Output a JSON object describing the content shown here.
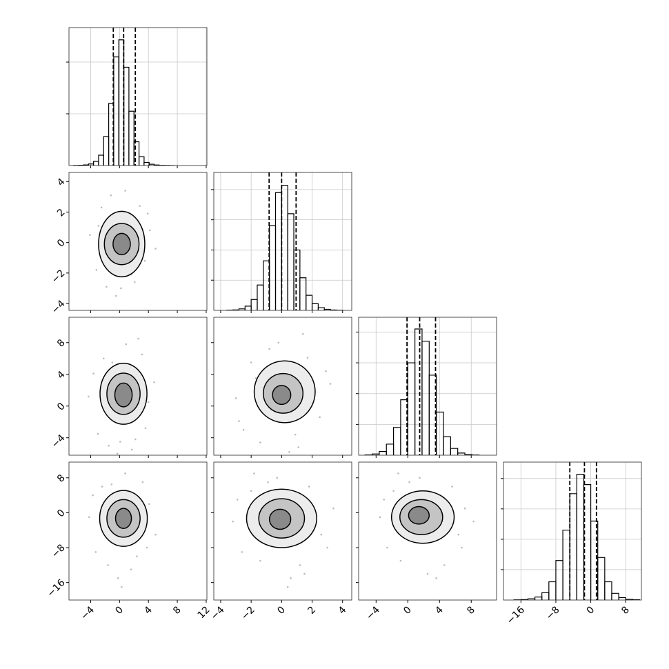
{
  "chart_data": [
    {
      "type": "histogram",
      "color": "#000000",
      "grid": true,
      "bins": [
        -6.4,
        -5.7,
        -5.0,
        -4.3,
        -3.6,
        -2.9,
        -2.2,
        -1.5,
        -0.8,
        -0.1,
        0.6,
        1.3,
        2.0,
        2.7,
        3.4,
        4.1,
        4.8,
        5.5,
        6.2,
        6.9,
        7.6
      ],
      "counts": [
        2,
        5,
        12,
        30,
        80,
        200,
        560,
        1200,
        2100,
        2430,
        1900,
        1050,
        460,
        170,
        60,
        25,
        10,
        4,
        2,
        1
      ],
      "quantiles": [
        -0.86,
        0.57,
        2.19
      ],
      "xlim": [
        -7,
        12.1
      ],
      "xticks": [
        {
          "value": -4,
          "label": "−4"
        },
        0,
        4,
        8,
        12
      ],
      "ylim": [
        0,
        2667
      ],
      "yticks": [
        1000,
        2000
      ]
    },
    {
      "type": "histogram",
      "color": "#000000",
      "grid": true,
      "bins": [
        -3.6,
        -3.2,
        -2.8,
        -2.4,
        -2.0,
        -1.6,
        -1.2,
        -0.8,
        -0.4,
        0.0,
        0.4,
        0.8,
        1.2,
        1.6,
        2.0,
        2.4,
        2.8,
        3.2,
        3.6,
        4.0
      ],
      "counts": [
        3,
        8,
        25,
        70,
        180,
        420,
        820,
        1400,
        1950,
        2070,
        1600,
        1000,
        540,
        250,
        110,
        45,
        18,
        6,
        2
      ],
      "quantiles": [
        -0.82,
        0,
        0.95
      ],
      "xlim": [
        -4.45,
        4.6
      ],
      "xticks": [
        {
          "value": -4,
          "label": "−4"
        },
        {
          "value": -2,
          "label": "−2"
        },
        0,
        2,
        4
      ],
      "ylim": [
        0,
        2284
      ],
      "yticks": [
        500,
        1000,
        1500,
        2000
      ]
    },
    {
      "type": "histogram",
      "color": "#000000",
      "grid": true,
      "bins": [
        -5.4,
        -4.5,
        -3.6,
        -2.7,
        -1.8,
        -0.9,
        0.0,
        0.9,
        1.8,
        2.7,
        3.6,
        4.5,
        5.4,
        6.3,
        7.2,
        8.1,
        9.0
      ],
      "counts": [
        5,
        20,
        60,
        180,
        450,
        900,
        1500,
        2050,
        1850,
        1300,
        700,
        300,
        110,
        35,
        10,
        3
      ],
      "quantiles": [
        -0.1,
        1.5,
        3.5
      ],
      "xlim": [
        -6.2,
        11.2
      ],
      "xticks": [
        {
          "value": -4,
          "label": "−4"
        },
        0,
        4,
        8
      ],
      "ylim": [
        0,
        2240
      ],
      "yticks": [
        500,
        1000,
        1500,
        2000
      ]
    },
    {
      "type": "histogram",
      "color": "#000000",
      "grid": true,
      "bins": [
        -17.6,
        -16.0,
        -14.4,
        -12.8,
        -11.2,
        -9.6,
        -8.0,
        -6.4,
        -4.8,
        -3.2,
        -1.6,
        0.0,
        1.6,
        3.2,
        4.8,
        6.4,
        8.0,
        9.6,
        11.2
      ],
      "counts": [
        3,
        8,
        20,
        50,
        120,
        300,
        650,
        1150,
        1750,
        2070,
        1900,
        1300,
        700,
        300,
        110,
        40,
        12,
        5
      ],
      "quantiles": [
        -4.8,
        -1.45,
        1.3
      ],
      "xlim": [
        -20,
        11.6
      ],
      "xticks": [
        {
          "value": -16,
          "label": "−16"
        },
        {
          "value": -8,
          "label": "−8"
        },
        0,
        8
      ],
      "ylim": [
        0,
        2270
      ],
      "yticks": [
        500,
        1000,
        1500,
        2000
      ]
    },
    {
      "type": "scatter",
      "color": "#bbbbbb",
      "x": [
        -4.1,
        -3.2,
        -2.5,
        -1.8,
        -1.2,
        2.1,
        2.8,
        3.5,
        4.2,
        5.0,
        -0.5,
        0.8,
        1.6,
        -2.9,
        3.9,
        0.2
      ],
      "y": [
        0.5,
        -1.8,
        2.3,
        -2.9,
        3.1,
        -2.6,
        2.4,
        -1.2,
        0.8,
        -0.4,
        -3.5,
        3.4,
        -2.1,
        1.1,
        1.9,
        -3.0
      ],
      "contours": [
        {
          "cx": 0.3,
          "cy": -0.1,
          "rx": 3.2,
          "ry": 2.15
        },
        {
          "cx": 0.3,
          "cy": -0.1,
          "rx": 2.4,
          "ry": 1.35
        },
        {
          "cx": 0.3,
          "cy": -0.1,
          "rx": 1.2,
          "ry": 0.7
        }
      ],
      "xlim": [
        -7,
        12.1
      ],
      "xticks": [
        {
          "value": -4,
          "label": "−4"
        },
        0,
        4,
        8,
        12
      ],
      "ylim": [
        -4.45,
        4.6
      ],
      "yticks": [
        {
          "value": -4,
          "label": "−4"
        },
        {
          "value": -2,
          "label": "−2"
        },
        0,
        2,
        4
      ]
    },
    {
      "type": "scatter",
      "color": "#bbbbbb",
      "x": [
        -4.3,
        -3.0,
        -2.2,
        -1.5,
        2.2,
        3.1,
        4.0,
        4.8,
        -0.3,
        0.9,
        1.7,
        -3.6,
        3.6,
        0.1,
        -1.0,
        2.6
      ],
      "y": [
        1.2,
        -3.5,
        6.0,
        -5.0,
        -4.2,
        6.5,
        0.5,
        3.0,
        -6.0,
        7.8,
        -5.5,
        4.1,
        -2.8,
        -4.5,
        5.5,
        8.5
      ],
      "contours": [
        {
          "cx": 0.55,
          "cy": 1.55,
          "rx": 3.25,
          "ry": 3.85
        },
        {
          "cx": 0.55,
          "cy": 1.55,
          "rx": 2.3,
          "ry": 2.6
        },
        {
          "cx": 0.55,
          "cy": 1.4,
          "rx": 1.2,
          "ry": 1.5
        }
      ],
      "xlim": [
        -7,
        12.1
      ],
      "xticks": [
        {
          "value": -4,
          "label": "−4"
        },
        0,
        4,
        8,
        12
      ],
      "ylim": [
        -6.2,
        11.2
      ],
      "yticks": [
        {
          "value": -4,
          "label": "−4"
        },
        0,
        4,
        8
      ]
    },
    {
      "type": "scatter",
      "color": "#bbbbbb",
      "x": [
        -3.0,
        -2.5,
        -2.0,
        -1.4,
        -0.8,
        1.1,
        1.7,
        2.5,
        3.2,
        -0.2,
        0.5,
        2.9,
        -2.8,
        1.4,
        -1.7,
        0.9
      ],
      "y": [
        1.0,
        -3.0,
        5.5,
        -4.6,
        7.2,
        -5.2,
        6.1,
        -1.4,
        2.8,
        8.0,
        -5.8,
        4.4,
        -1.9,
        9.1,
        3.5,
        -3.6
      ],
      "contours": [
        {
          "cx": 0.2,
          "cy": 1.8,
          "rx": 2.0,
          "ry": 3.9
        },
        {
          "cx": 0.1,
          "cy": 1.6,
          "rx": 1.3,
          "ry": 2.5
        },
        {
          "cx": 0.0,
          "cy": 1.4,
          "rx": 0.6,
          "ry": 1.2
        }
      ],
      "xlim": [
        -4.45,
        4.6
      ],
      "xticks": [
        {
          "value": -4,
          "label": "−4"
        },
        {
          "value": -2,
          "label": "−2"
        },
        0,
        2,
        4
      ],
      "ylim": [
        -6.2,
        11.2
      ],
      "yticks": [
        {
          "value": -4,
          "label": "−4"
        },
        0,
        4,
        8
      ]
    },
    {
      "type": "scatter",
      "color": "#bbbbbb",
      "x": [
        -4.2,
        -3.3,
        -2.4,
        -1.6,
        2.4,
        3.2,
        4.1,
        5.0,
        -0.2,
        0.8,
        1.6,
        -3.7,
        3.8,
        0.3,
        -1.1,
        2.7
      ],
      "y": [
        -1,
        -9,
        6,
        -12,
        -10,
        7,
        2,
        -5,
        -15,
        9,
        -13,
        4,
        -8,
        -17,
        6.5,
        -3
      ],
      "contours": [
        {
          "cx": 0.55,
          "cy": -1.3,
          "rx": 3.3,
          "ry": 6.4
        },
        {
          "cx": 0.55,
          "cy": -1.3,
          "rx": 2.3,
          "ry": 4.3
        },
        {
          "cx": 0.55,
          "cy": -1.3,
          "rx": 1.1,
          "ry": 2.3
        }
      ],
      "xlim": [
        -7,
        12.1
      ],
      "xticks": [
        {
          "value": -4,
          "label": "−4"
        },
        0,
        4,
        8,
        12
      ],
      "ylim": [
        -20,
        11.6
      ],
      "yticks": [
        {
          "value": -16,
          "label": "−16"
        },
        {
          "value": -8,
          "label": "−8"
        },
        0,
        8
      ]
    },
    {
      "type": "scatter",
      "color": "#bbbbbb",
      "x": [
        -3.2,
        -2.6,
        -2.0,
        -1.4,
        -0.9,
        1.2,
        1.8,
        2.6,
        3.4,
        -0.3,
        0.6,
        3.0,
        -2.9,
        1.5,
        -1.8,
        0.4
      ],
      "y": [
        -2,
        -9,
        5,
        -11,
        7,
        -12,
        6,
        -5,
        1,
        8,
        -15,
        -8,
        3,
        -14,
        9,
        -17
      ],
      "contours": [
        {
          "cx": 0.0,
          "cy": -1.3,
          "rx": 2.3,
          "ry": 6.7
        },
        {
          "cx": 0.0,
          "cy": -1.3,
          "rx": 1.5,
          "ry": 4.5
        },
        {
          "cx": -0.1,
          "cy": -1.5,
          "rx": 0.7,
          "ry": 2.3
        }
      ],
      "xlim": [
        -4.45,
        4.6
      ],
      "xticks": [
        {
          "value": -4,
          "label": "−4"
        },
        {
          "value": -2,
          "label": "−2"
        },
        0,
        2,
        4
      ],
      "ylim": [
        -20,
        11.6
      ],
      "yticks": [
        {
          "value": -16,
          "label": "−16"
        },
        {
          "value": -8,
          "label": "−8"
        },
        0,
        8
      ]
    },
    {
      "type": "scatter",
      "color": "#bbbbbb",
      "x": [
        -3.5,
        -2.6,
        -1.8,
        -0.9,
        0.2,
        4.6,
        5.6,
        6.4,
        7.2,
        1.5,
        2.5,
        6.8,
        -3.0,
        3.6,
        -1.2,
        8.3
      ],
      "y": [
        -1,
        -8,
        5,
        -11,
        7,
        -12,
        6,
        -5,
        1,
        8,
        -14,
        -8,
        3,
        -15,
        9,
        -2
      ],
      "contours": [
        {
          "cx": 1.9,
          "cy": -1.0,
          "rx": 3.95,
          "ry": 6.0
        },
        {
          "cx": 1.7,
          "cy": -1.0,
          "rx": 2.7,
          "ry": 4.0
        },
        {
          "cx": 1.4,
          "cy": -0.6,
          "rx": 1.3,
          "ry": 2.0
        }
      ],
      "xlim": [
        -6.2,
        11.2
      ],
      "xticks": [
        {
          "value": -4,
          "label": "−4"
        },
        0,
        4,
        8
      ],
      "ylim": [
        -20,
        11.6
      ],
      "yticks": [
        {
          "value": -16,
          "label": "−16"
        },
        {
          "value": -8,
          "label": "−8"
        },
        0,
        8
      ]
    }
  ]
}
